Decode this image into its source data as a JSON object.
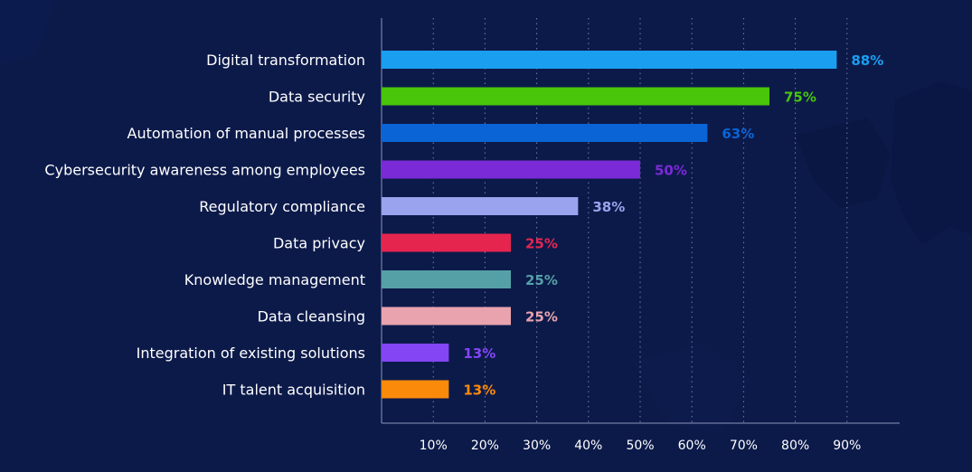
{
  "chart_data": {
    "type": "bar",
    "orientation": "horizontal",
    "categories": [
      "Digital transformation",
      "Data security",
      "Automation of manual processes",
      "Cybersecurity awareness among employees",
      "Regulatory compliance",
      "Data privacy",
      "Knowledge management",
      "Data cleansing",
      "Integration of existing solutions",
      "IT talent acquisition"
    ],
    "values": [
      88,
      75,
      63,
      50,
      38,
      25,
      25,
      25,
      13,
      13
    ],
    "value_labels": [
      "88%",
      "75%",
      "63%",
      "50%",
      "38%",
      "25%",
      "25%",
      "25%",
      "13%",
      "13%"
    ],
    "colors": [
      "#1a9ff0",
      "#49c50a",
      "#0a64d6",
      "#7a2ad6",
      "#9aa3ee",
      "#e6254f",
      "#55a0a6",
      "#e9a3ae",
      "#8445f4",
      "#fc8a0a"
    ],
    "xticks": [
      10,
      20,
      30,
      40,
      50,
      60,
      70,
      80,
      90
    ],
    "xtick_labels": [
      "10%",
      "20%",
      "30%",
      "40%",
      "50%",
      "60%",
      "70%",
      "80%",
      "90%"
    ],
    "xlim": [
      0,
      100
    ],
    "grid": "vertical dotted",
    "legend": "none",
    "title": "",
    "xlabel": "",
    "ylabel": ""
  },
  "colors": {
    "background": "#0c1a4a",
    "grid": "#6f7fa6",
    "axis": "#8a96b8",
    "text": "#ffffff"
  }
}
